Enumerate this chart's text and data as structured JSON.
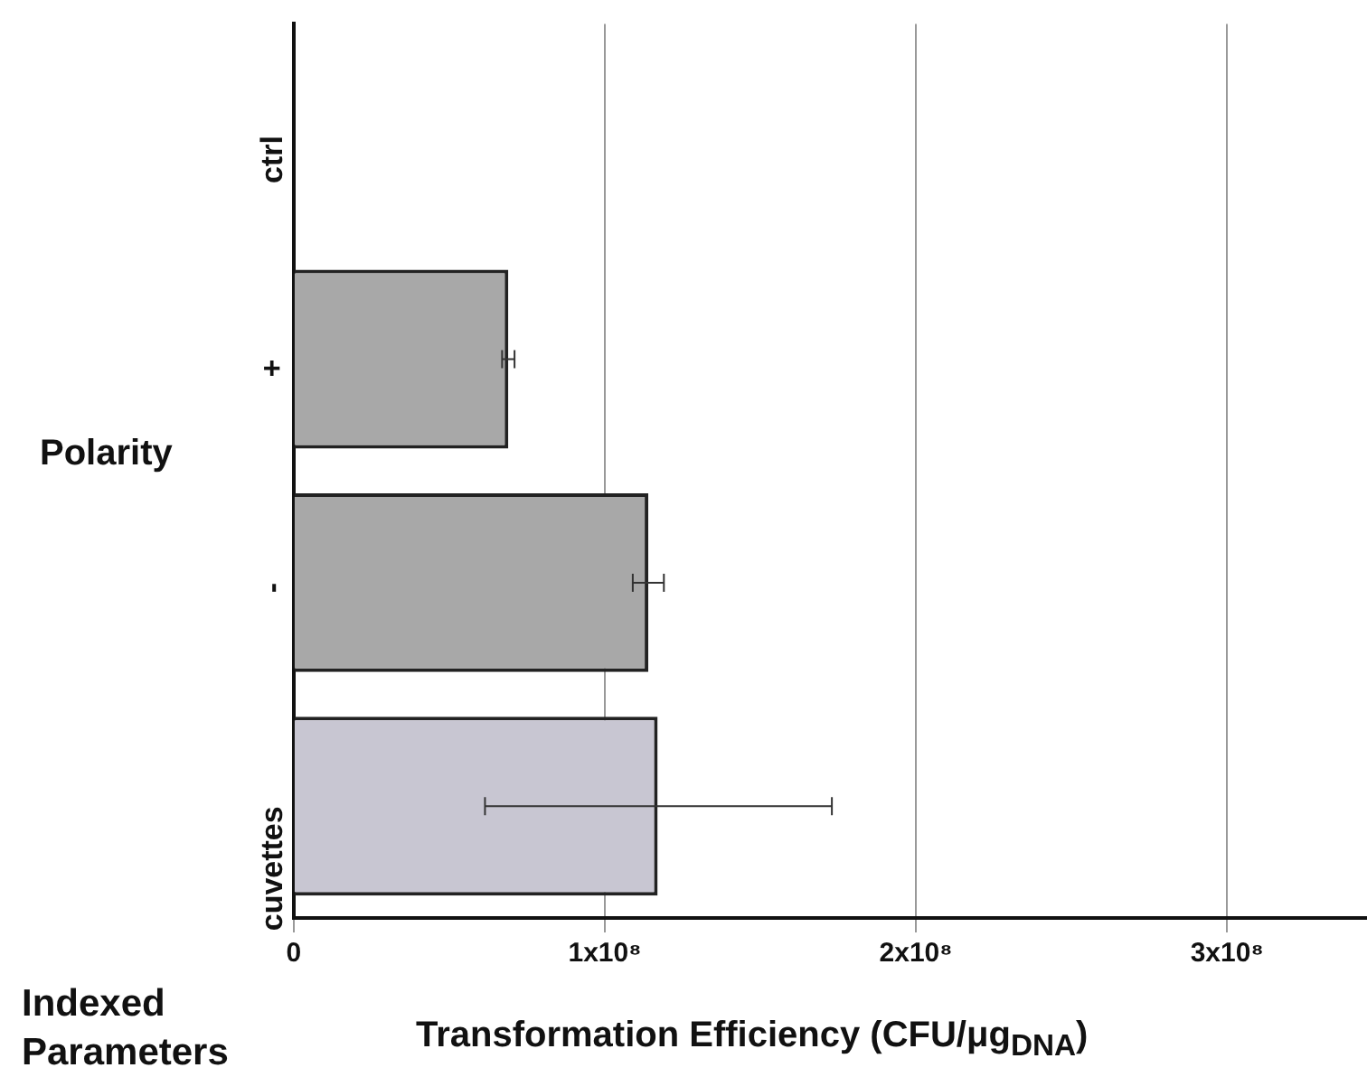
{
  "chart_data": {
    "type": "bar",
    "orientation": "horizontal",
    "xlabel": "Transformation Efficiency (CFU/μg$_{DNA}$)",
    "ylabel": "Indexed Parameters",
    "annotations": [
      "Polarity"
    ],
    "categories": [
      "ctrl",
      "+",
      "-",
      "cuvettes"
    ],
    "values": [
      null,
      69000000,
      114000000,
      117000000
    ],
    "errors": [
      null,
      2000000,
      5000000,
      [
        61500000,
        173000000
      ]
    ],
    "colors": [
      "#a8a8a8",
      "#a8a8a8",
      "#a8a8a8",
      "#c8c6d2"
    ],
    "xlim": [
      0,
      345000000
    ],
    "xticks": [
      0,
      {
        "value": 100000000,
        "label": "1x10⁸"
      },
      {
        "value": 200000000,
        "label": "2x10⁸"
      },
      {
        "value": 300000000,
        "label": "3x10⁸"
      }
    ],
    "grid": "x",
    "legend": false
  }
}
